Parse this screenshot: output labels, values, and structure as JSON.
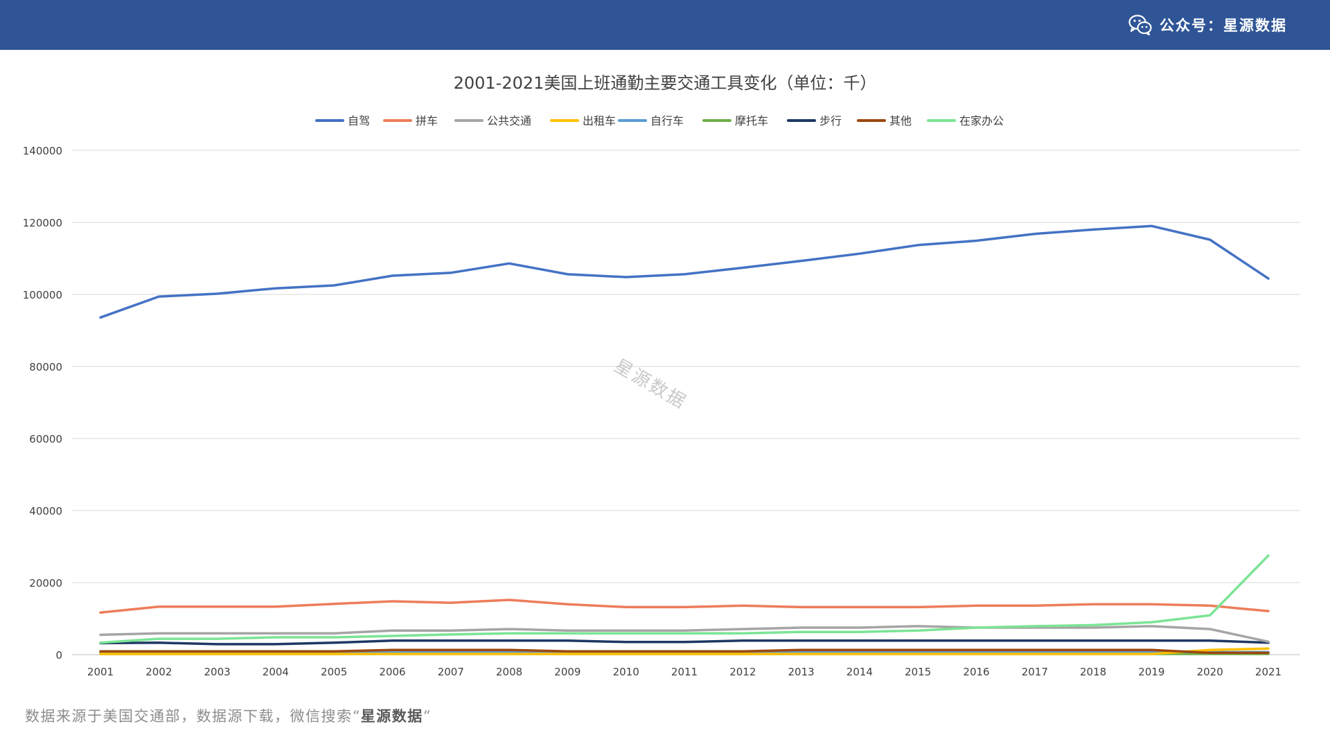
{
  "header": {
    "brand_label": "公众号：星源数据",
    "brand_icon": "wechat-icon",
    "background": "#2f5597"
  },
  "watermark": "星源数据",
  "footer": {
    "prefix": "数据来源于美国交通部，数据源下载，微信搜索",
    "quote_open": "“",
    "highlight": "星源数据",
    "quote_close": "”"
  },
  "chart_data": {
    "type": "line",
    "title": "2001-2021美国上班通勤主要交通工具变化（单位：千）",
    "xlabel": "",
    "ylabel": "",
    "categories": [
      "2001",
      "2002",
      "2003",
      "2004",
      "2005",
      "2006",
      "2007",
      "2008",
      "2009",
      "2010",
      "2011",
      "2012",
      "2013",
      "2014",
      "2015",
      "2016",
      "2017",
      "2018",
      "2019",
      "2020",
      "2021"
    ],
    "ylim": [
      0,
      140000
    ],
    "yticks": [
      0,
      20000,
      40000,
      60000,
      80000,
      100000,
      120000,
      140000
    ],
    "grid": true,
    "legend_position": "top",
    "series": [
      {
        "name": "自驾",
        "color": "#4472c4",
        "values": [
          93600,
          99400,
          100200,
          101700,
          102500,
          105200,
          106000,
          108600,
          105600,
          104800,
          105600,
          107400,
          109300,
          111300,
          113700,
          114900,
          116800,
          118000,
          119000,
          115200,
          104400
        ]
      },
      {
        "name": "拼车",
        "color": "#ed7d5a",
        "values": [
          11700,
          13300,
          13300,
          13300,
          14100,
          14800,
          14400,
          15200,
          14000,
          13200,
          13200,
          13600,
          13200,
          13200,
          13200,
          13600,
          13600,
          14000,
          14000,
          13600,
          12100
        ]
      },
      {
        "name": "公共交通",
        "color": "#a5a5a5",
        "values": [
          5500,
          5900,
          5900,
          5900,
          5900,
          6700,
          6700,
          7100,
          6700,
          6700,
          6700,
          7100,
          7500,
          7500,
          7900,
          7500,
          7500,
          7500,
          7900,
          7100,
          3600
        ]
      },
      {
        "name": "出租车",
        "color": "#ffc000",
        "values": [
          200,
          200,
          200,
          200,
          200,
          200,
          200,
          200,
          200,
          200,
          200,
          200,
          200,
          200,
          200,
          200,
          200,
          200,
          200,
          1300,
          1700
        ]
      },
      {
        "name": "自行车",
        "color": "#5b9bd5",
        "values": [
          500,
          500,
          500,
          500,
          600,
          600,
          700,
          700,
          700,
          700,
          700,
          800,
          800,
          800,
          800,
          800,
          800,
          800,
          800,
          700,
          700
        ]
      },
      {
        "name": "摩托车",
        "color": "#70ad47",
        "values": [
          200,
          200,
          200,
          200,
          200,
          200,
          200,
          200,
          200,
          200,
          200,
          200,
          200,
          200,
          200,
          200,
          200,
          200,
          200,
          200,
          200
        ]
      },
      {
        "name": "步行",
        "color": "#1f3864",
        "values": [
          3200,
          3300,
          2900,
          2900,
          3300,
          3900,
          3900,
          3900,
          3900,
          3500,
          3500,
          3900,
          3900,
          3900,
          3900,
          3900,
          3900,
          3900,
          3900,
          3900,
          3300
        ]
      },
      {
        "name": "其他",
        "color": "#9e480e",
        "values": [
          900,
          900,
          900,
          900,
          900,
          1300,
          1300,
          1300,
          900,
          900,
          900,
          900,
          1300,
          1300,
          1300,
          1300,
          1300,
          1300,
          1300,
          500,
          500
        ]
      },
      {
        "name": "在家办公",
        "color": "#7be495",
        "values": [
          3300,
          4400,
          4400,
          4800,
          4800,
          5200,
          5600,
          5900,
          5900,
          5900,
          5900,
          5900,
          6300,
          6300,
          6700,
          7500,
          7900,
          8200,
          9000,
          10900,
          27500
        ]
      }
    ]
  }
}
